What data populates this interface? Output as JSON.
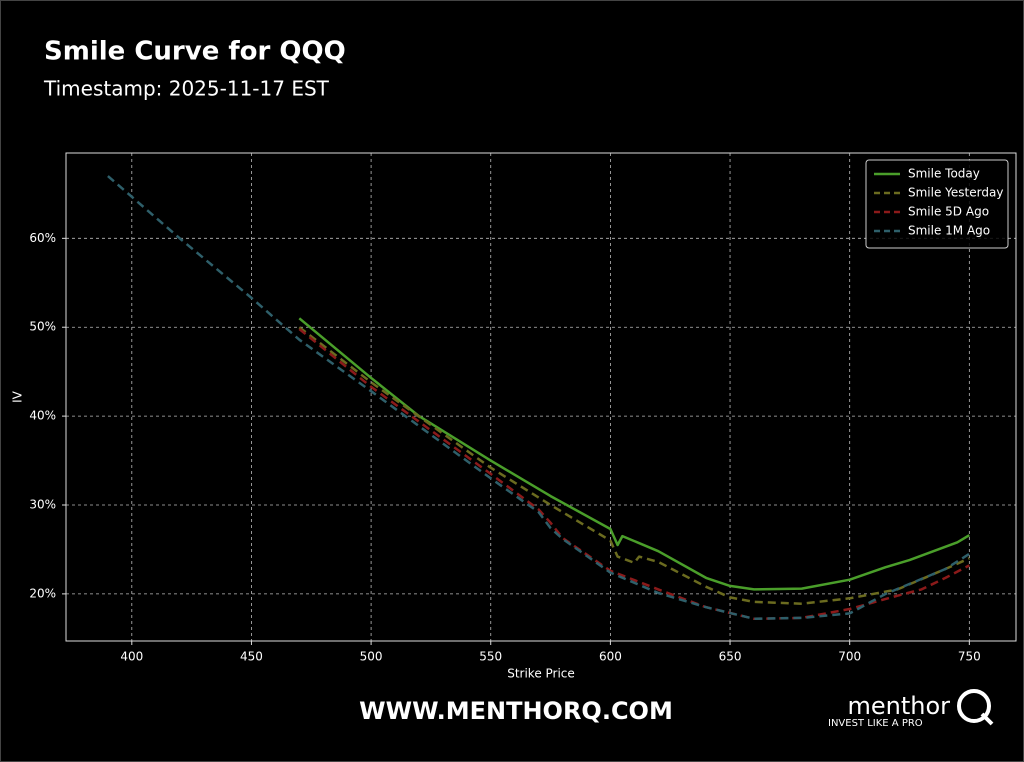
{
  "chart_data": {
    "type": "line",
    "title": "Smile Curve for QQQ",
    "subtitle": "Timestamp: 2025-11-17 EST",
    "x_label": "Strike Price",
    "y_label": "IV",
    "xlim": [
      372.5,
      769.5
    ],
    "ylim": [
      14.7,
      69.6
    ],
    "xticks": [
      400,
      450,
      500,
      550,
      600,
      650,
      700,
      750
    ],
    "yticks": [
      {
        "value": 20,
        "label": "20%"
      },
      {
        "value": 30,
        "label": "30%"
      },
      {
        "value": 40,
        "label": "40%"
      },
      {
        "value": 50,
        "label": "50%"
      },
      {
        "value": 60,
        "label": "60%"
      }
    ],
    "grid": true,
    "legend": "upper right",
    "series": [
      {
        "name": "Smile Today",
        "color": "#4a9e2a",
        "style": "solid",
        "x": [
          470,
          500,
          520,
          550,
          575,
          600,
          603,
          605,
          620,
          640,
          650,
          660,
          680,
          700,
          715,
          725,
          745,
          750
        ],
        "values": [
          51,
          44.3,
          40,
          35,
          31,
          27.3,
          25.5,
          26.5,
          24.8,
          21.8,
          20.9,
          20.5,
          20.6,
          21.6,
          23,
          23.8,
          25.8,
          26.6
        ]
      },
      {
        "name": "Smile Yesterday",
        "color": "#6b6b1f",
        "style": "dashed",
        "x": [
          470,
          500,
          550,
          575,
          600,
          603,
          610,
          612,
          620,
          640,
          650,
          660,
          680,
          700,
          720,
          740,
          750
        ],
        "values": [
          50,
          43.8,
          34.2,
          30,
          26,
          24.2,
          23.5,
          24.2,
          23.6,
          20.8,
          19.6,
          19.1,
          18.9,
          19.5,
          20.5,
          22.8,
          24
        ]
      },
      {
        "name": "Smile 5D Ago",
        "color": "#8b1a1a",
        "style": "dashed",
        "x": [
          470,
          500,
          550,
          570,
          575,
          580,
          600,
          620,
          625,
          640,
          660,
          680,
          700,
          720,
          730,
          740,
          750
        ],
        "values": [
          49.8,
          43.3,
          33.5,
          29.5,
          28,
          26.3,
          22.6,
          20.5,
          20,
          18.5,
          17.2,
          17.3,
          18.3,
          19.8,
          20.5,
          21.8,
          23.2
        ]
      },
      {
        "name": "Smile 1M Ago",
        "color": "#2e5f6a",
        "style": "dashed",
        "x": [
          390,
          420,
          450,
          470,
          500,
          550,
          570,
          575,
          580,
          600,
          620,
          640,
          660,
          680,
          700,
          715,
          740,
          750
        ],
        "values": [
          67,
          60,
          53.3,
          48.6,
          42.8,
          33,
          29.2,
          27.4,
          26.2,
          22.4,
          20.1,
          18.5,
          17.2,
          17.3,
          17.8,
          20,
          22.8,
          24.5
        ]
      }
    ]
  },
  "footer": {
    "website": "WWW.MENTHORQ.COM",
    "brand": "menthor",
    "brand_mark": "Q",
    "tagline": "INVEST LIKE A PRO"
  }
}
